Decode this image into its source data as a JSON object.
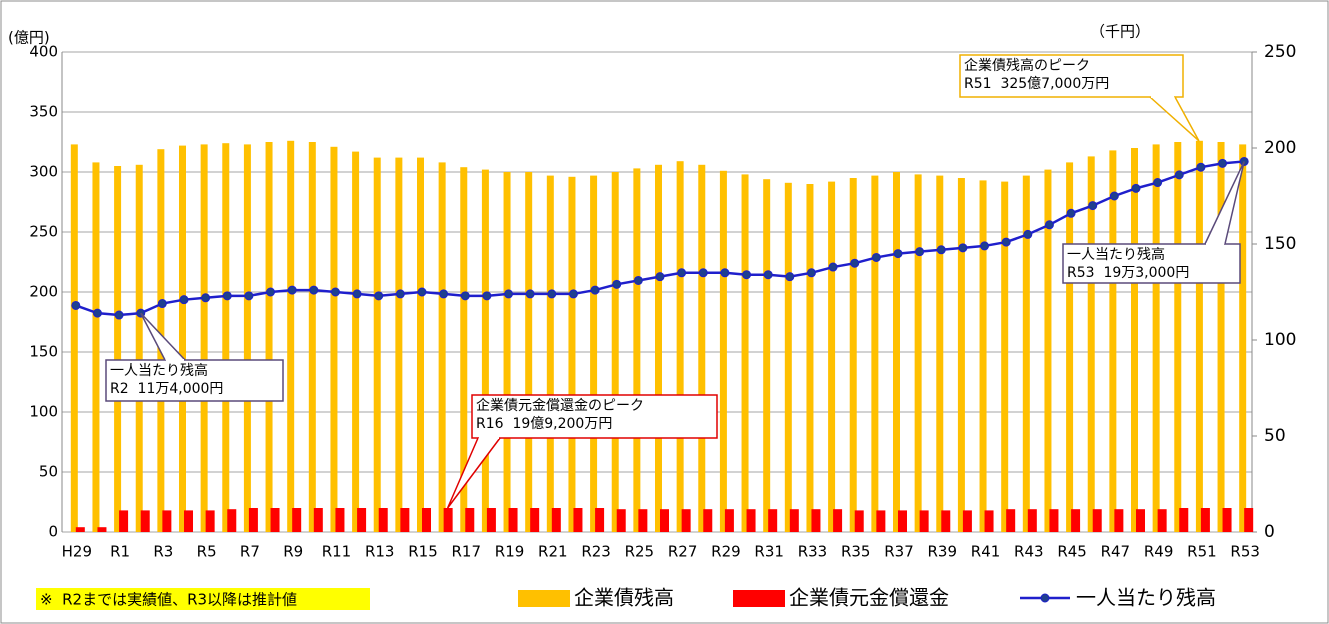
{
  "chart_data": {
    "type": "bar",
    "categories": [
      "H29",
      null,
      "R1",
      null,
      "R3",
      null,
      "R5",
      null,
      "R7",
      null,
      "R9",
      null,
      "R11",
      null,
      "R13",
      null,
      "R15",
      null,
      "R17",
      null,
      "R19",
      null,
      "R21",
      null,
      "R23",
      null,
      "R25",
      null,
      "R27",
      null,
      "R29",
      null,
      "R31",
      null,
      "R33",
      null,
      "R35",
      null,
      "R37",
      null,
      "R39",
      null,
      "R41",
      null,
      "R43",
      null,
      "R45",
      null,
      "R47",
      null,
      "R49",
      null,
      "R51",
      null,
      "R53"
    ],
    "series": [
      {
        "name": "企業債残高",
        "color": "#ffc000",
        "values": [
          323,
          308,
          305,
          306,
          319,
          322,
          323,
          324,
          323,
          325,
          326,
          325,
          321,
          317,
          312,
          312,
          312,
          308,
          304,
          302,
          300,
          300,
          297,
          296,
          297,
          300,
          303,
          306,
          309,
          306,
          301,
          298,
          294,
          291,
          290,
          292,
          295,
          297,
          300,
          298,
          297,
          295,
          293,
          292,
          297,
          302,
          308,
          313,
          318,
          320,
          323,
          325,
          326,
          325,
          323
        ]
      },
      {
        "name": "企業債元金償還金",
        "color": "#ff0000",
        "values": [
          4,
          4,
          18,
          18,
          18,
          18,
          18,
          19,
          20,
          20,
          20,
          20,
          20,
          20,
          20,
          20,
          20,
          20,
          20,
          20,
          20,
          20,
          20,
          20,
          20,
          19,
          19,
          19,
          19,
          19,
          19,
          19,
          19,
          19,
          19,
          19,
          18,
          18,
          18,
          18,
          18,
          18,
          18,
          19,
          19,
          19,
          19,
          19,
          19,
          19,
          19,
          20,
          20,
          20,
          20
        ]
      },
      {
        "name": "一人当たり残高",
        "type": "line",
        "axis": "y2",
        "color": "#1f1fcc",
        "values": [
          118,
          114,
          113,
          114,
          119,
          121,
          122,
          123,
          123,
          125,
          126,
          126,
          125,
          124,
          123,
          124,
          125,
          124,
          123,
          123,
          124,
          124,
          124,
          124,
          126,
          129,
          131,
          133,
          135,
          135,
          135,
          134,
          134,
          133,
          135,
          138,
          140,
          143,
          145,
          146,
          147,
          148,
          149,
          151,
          155,
          160,
          166,
          170,
          175,
          179,
          182,
          186,
          190,
          192,
          193
        ]
      }
    ],
    "ylim": [
      0,
      400
    ],
    "yticks": [
      0,
      50,
      100,
      150,
      200,
      250,
      300,
      350,
      400
    ],
    "y2lim": [
      0,
      250
    ],
    "y2ticks": [
      0,
      50,
      100,
      150,
      200,
      250
    ],
    "y_label": "(億円)",
    "y2_label": "（千円）",
    "grid": true,
    "annotations": [
      {
        "lines": [
          "企業債残高のピーク",
          "R51  325億7,000万円"
        ]
      },
      {
        "lines": [
          "一人当たり残高",
          "R53  19万3,000円"
        ]
      },
      {
        "lines": [
          "一人当たり残高",
          "R2  11万4,000円"
        ]
      },
      {
        "lines": [
          "企業債元金償還金のピーク",
          "R16  19億9,200万円"
        ]
      }
    ],
    "note": "※  R2までは実績値、R3以降は推計値"
  }
}
